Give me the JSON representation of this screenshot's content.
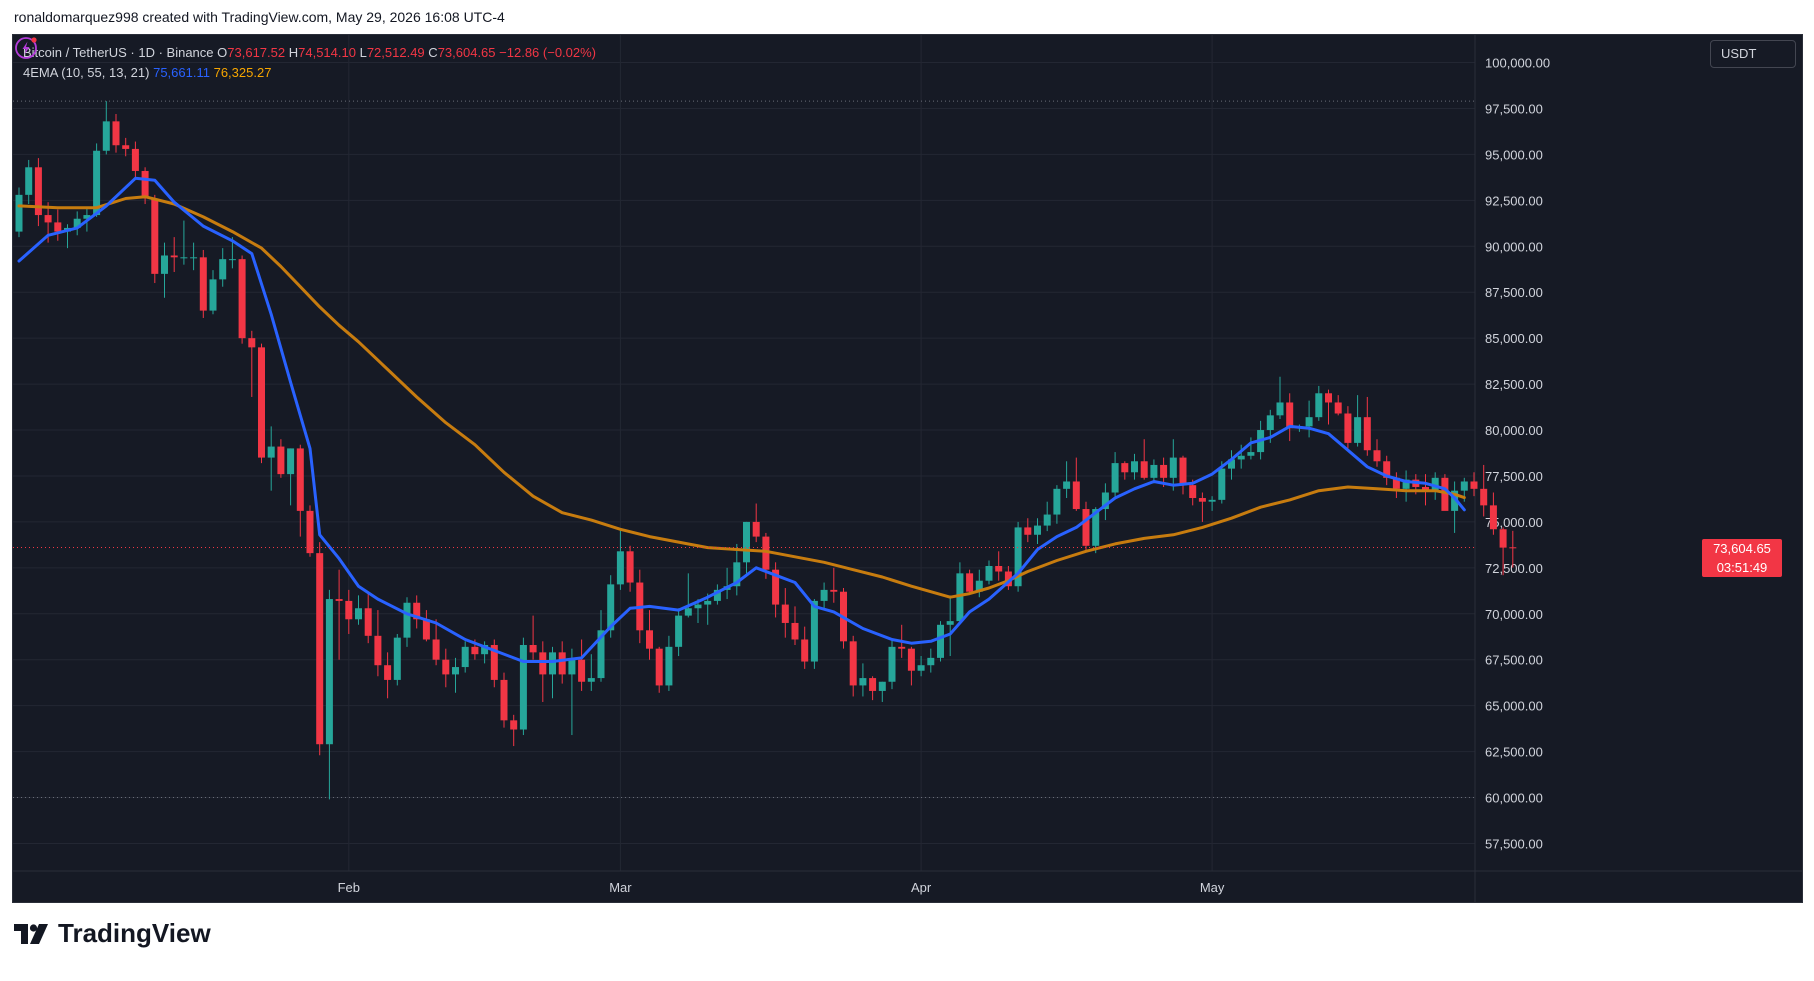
{
  "caption": "ronaldomarquez998 created with TradingView.com, May 29, 2026 16:08 UTC-4",
  "brand": {
    "name": "TradingView",
    "icon": "tradingview-logo-icon"
  },
  "currency": "USDT",
  "legend": {
    "symbol": "Bitcoin / TetherUS · 1D · Binance",
    "open_label": "O",
    "open": "73,617.52",
    "high_label": "H",
    "high": "74,514.10",
    "low_label": "L",
    "low": "72,512.49",
    "close_label": "C",
    "close": "73,604.65",
    "change": "−12.86 (−0.02%)",
    "indicator": "4EMA (10, 55, 13, 21)",
    "ema_fast": "75,661.11",
    "ema_slow": "76,325.27"
  },
  "last_price": {
    "price": "73,604.65",
    "countdown": "03:51:49",
    "value": 73604.65
  },
  "colors": {
    "up": "#26a69a",
    "down": "#f23645",
    "ema_fast": "#2962ff",
    "ema_slow": "#c77c0f",
    "background": "#161a25",
    "grid": "#232733",
    "axis_text": "#d1d4dc"
  },
  "chart_data": {
    "type": "candlestick",
    "title": "Bitcoin / TetherUS · 1D · Binance",
    "ylim": [
      56000,
      101500
    ],
    "y_ticks": [
      57500,
      60000,
      62500,
      65000,
      67500,
      70000,
      72500,
      75000,
      77500,
      80000,
      82500,
      85000,
      87500,
      90000,
      92500,
      95000,
      97500,
      100000
    ],
    "y_tick_labels": [
      "57,500.00",
      "60,000.00",
      "62,500.00",
      "65,000.00",
      "67,500.00",
      "70,000.00",
      "72,500.00",
      "75,000.00",
      "77,500.00",
      "80,000.00",
      "82,500.00",
      "85,000.00",
      "87,500.00",
      "90,000.00",
      "92,500.00",
      "95,000.00",
      "97,500.00",
      "100,000.00"
    ],
    "x_labels": [
      {
        "label": "Feb",
        "index": 34
      },
      {
        "label": "Mar",
        "index": 62
      },
      {
        "label": "Apr",
        "index": 93
      },
      {
        "label": "May",
        "index": 123
      }
    ],
    "dotted_levels": [
      97900,
      60000
    ],
    "candles": [
      [
        90800,
        93200,
        90500,
        92800
      ],
      [
        92800,
        94700,
        92300,
        94300
      ],
      [
        94300,
        94800,
        91100,
        91700
      ],
      [
        91700,
        92400,
        90200,
        91300
      ],
      [
        91300,
        92000,
        90300,
        90800
      ],
      [
        90800,
        91200,
        89900,
        91000
      ],
      [
        91000,
        91900,
        90600,
        91500
      ],
      [
        91500,
        92100,
        90800,
        91700
      ],
      [
        91700,
        95600,
        91600,
        95200
      ],
      [
        95200,
        97900,
        95000,
        96800
      ],
      [
        96800,
        97200,
        95100,
        95500
      ],
      [
        95500,
        95900,
        94900,
        95300
      ],
      [
        95300,
        95700,
        93700,
        94100
      ],
      [
        94100,
        94300,
        92300,
        92600
      ],
      [
        92600,
        92800,
        88000,
        88500
      ],
      [
        88500,
        90200,
        87200,
        89500
      ],
      [
        89500,
        90500,
        88600,
        89400
      ],
      [
        89400,
        91400,
        89000,
        89400
      ],
      [
        89400,
        90200,
        88700,
        89400
      ],
      [
        89400,
        89800,
        86100,
        86500
      ],
      [
        86500,
        88700,
        86300,
        88200
      ],
      [
        88200,
        89900,
        87800,
        89300
      ],
      [
        89300,
        90500,
        88800,
        89300
      ],
      [
        89300,
        89500,
        84700,
        85000
      ],
      [
        85000,
        85400,
        81800,
        84500
      ],
      [
        84500,
        84700,
        78200,
        78500
      ],
      [
        78500,
        80200,
        76700,
        79100
      ],
      [
        79100,
        79500,
        77400,
        77600
      ],
      [
        77600,
        79000,
        75900,
        79000
      ],
      [
        79000,
        79200,
        74200,
        75600
      ],
      [
        75600,
        75900,
        73100,
        73300
      ],
      [
        73300,
        73900,
        62300,
        62900
      ],
      [
        62900,
        71300,
        59900,
        70800
      ],
      [
        70800,
        72400,
        67500,
        70700
      ],
      [
        70700,
        71300,
        68900,
        69700
      ],
      [
        69700,
        71000,
        69400,
        70300
      ],
      [
        70300,
        71100,
        68400,
        68800
      ],
      [
        68800,
        70200,
        66600,
        67200
      ],
      [
        67200,
        67900,
        65400,
        66400
      ],
      [
        66400,
        68900,
        66100,
        68700
      ],
      [
        68700,
        70900,
        68200,
        70600
      ],
      [
        70600,
        71000,
        69200,
        69700
      ],
      [
        69700,
        70200,
        68500,
        68600
      ],
      [
        68600,
        69700,
        67200,
        67500
      ],
      [
        67500,
        68100,
        66000,
        66700
      ],
      [
        66700,
        67600,
        65700,
        67100
      ],
      [
        67100,
        68500,
        66800,
        68200
      ],
      [
        68200,
        68600,
        67500,
        67800
      ],
      [
        67800,
        68500,
        67300,
        68300
      ],
      [
        68300,
        68600,
        66000,
        66400
      ],
      [
        66400,
        66800,
        63800,
        64200
      ],
      [
        64200,
        64500,
        62800,
        63700
      ],
      [
        63700,
        68700,
        63400,
        68300
      ],
      [
        68300,
        69900,
        67500,
        67900
      ],
      [
        67900,
        68500,
        65200,
        66700
      ],
      [
        66700,
        68200,
        65400,
        67900
      ],
      [
        67900,
        68500,
        66200,
        66700
      ],
      [
        66700,
        68100,
        63400,
        67500
      ],
      [
        67500,
        68600,
        65800,
        66300
      ],
      [
        66300,
        67800,
        65800,
        66500
      ],
      [
        66500,
        70200,
        66300,
        69100
      ],
      [
        69100,
        72100,
        68700,
        71600
      ],
      [
        71600,
        74600,
        71300,
        73400
      ],
      [
        73400,
        73700,
        71200,
        71700
      ],
      [
        71700,
        72400,
        68400,
        69100
      ],
      [
        69100,
        70200,
        67500,
        68100
      ],
      [
        68100,
        68200,
        65700,
        66100
      ],
      [
        66100,
        68800,
        65800,
        68200
      ],
      [
        68200,
        70300,
        67700,
        69900
      ],
      [
        69900,
        72200,
        69800,
        70300
      ],
      [
        70300,
        70800,
        69500,
        70500
      ],
      [
        70500,
        71100,
        69400,
        70700
      ],
      [
        70700,
        71600,
        70500,
        71300
      ],
      [
        71300,
        72500,
        70800,
        71500
      ],
      [
        71500,
        73800,
        71000,
        72800
      ],
      [
        72800,
        75000,
        72200,
        75000
      ],
      [
        75000,
        76000,
        73900,
        74200
      ],
      [
        74200,
        74400,
        71900,
        72400
      ],
      [
        72400,
        72800,
        69800,
        70500
      ],
      [
        70500,
        71400,
        68700,
        69500
      ],
      [
        69500,
        70400,
        68300,
        68600
      ],
      [
        68600,
        69300,
        67000,
        67400
      ],
      [
        67400,
        70800,
        67000,
        70700
      ],
      [
        70700,
        71700,
        70300,
        71300
      ],
      [
        71300,
        72500,
        70600,
        71200
      ],
      [
        71200,
        71400,
        68100,
        68500
      ],
      [
        68500,
        68800,
        65500,
        66100
      ],
      [
        66100,
        67300,
        65500,
        66500
      ],
      [
        66500,
        66600,
        65300,
        65800
      ],
      [
        65800,
        66300,
        65200,
        66300
      ],
      [
        66300,
        68600,
        65900,
        68200
      ],
      [
        68200,
        69400,
        67600,
        68100
      ],
      [
        68100,
        68200,
        66100,
        66900
      ],
      [
        66900,
        67700,
        66600,
        67200
      ],
      [
        67200,
        68100,
        66800,
        67600
      ],
      [
        67600,
        69600,
        67400,
        69400
      ],
      [
        69400,
        71000,
        67700,
        69600
      ],
      [
        69600,
        72800,
        69500,
        72200
      ],
      [
        72200,
        72400,
        71100,
        71200
      ],
      [
        71200,
        72400,
        70900,
        71800
      ],
      [
        71800,
        72900,
        71600,
        72600
      ],
      [
        72600,
        73400,
        71800,
        72300
      ],
      [
        72300,
        72600,
        71300,
        71500
      ],
      [
        71500,
        75000,
        71200,
        74700
      ],
      [
        74700,
        75200,
        73900,
        74300
      ],
      [
        74300,
        75200,
        73800,
        74800
      ],
      [
        74800,
        76100,
        74500,
        75400
      ],
      [
        75400,
        77000,
        74900,
        76800
      ],
      [
        76800,
        78300,
        76300,
        77200
      ],
      [
        77200,
        78500,
        75600,
        75700
      ],
      [
        75700,
        76100,
        73400,
        73700
      ],
      [
        73700,
        75800,
        73300,
        75700
      ],
      [
        75700,
        77100,
        75100,
        76600
      ],
      [
        76600,
        78800,
        76300,
        78200
      ],
      [
        78200,
        78300,
        77300,
        77700
      ],
      [
        77700,
        78700,
        77300,
        78300
      ],
      [
        78300,
        79500,
        77300,
        77400
      ],
      [
        77400,
        78400,
        77100,
        78100
      ],
      [
        78100,
        78500,
        76900,
        77400
      ],
      [
        77400,
        79500,
        76700,
        78500
      ],
      [
        78500,
        78600,
        76500,
        77000
      ],
      [
        77000,
        77300,
        75900,
        76300
      ],
      [
        76300,
        76600,
        75000,
        76100
      ],
      [
        76100,
        76400,
        75600,
        76200
      ],
      [
        76200,
        78300,
        76000,
        77900
      ],
      [
        77900,
        78900,
        77300,
        78400
      ],
      [
        78400,
        79200,
        77900,
        78600
      ],
      [
        78600,
        79600,
        78400,
        78800
      ],
      [
        78800,
        80500,
        78400,
        80000
      ],
      [
        80000,
        81100,
        79300,
        80800
      ],
      [
        80800,
        82900,
        80600,
        81500
      ],
      [
        81500,
        82000,
        79400,
        80100
      ],
      [
        80100,
        80300,
        79900,
        80200
      ],
      [
        80200,
        81600,
        79600,
        80700
      ],
      [
        80700,
        82400,
        80500,
        82000
      ],
      [
        82000,
        82200,
        80300,
        81500
      ],
      [
        81500,
        81900,
        80800,
        80900
      ],
      [
        80900,
        81300,
        79000,
        79300
      ],
      [
        79300,
        81900,
        79100,
        80700
      ],
      [
        80700,
        81800,
        78600,
        78900
      ],
      [
        78900,
        79500,
        78000,
        78300
      ],
      [
        78300,
        78600,
        77000,
        77400
      ],
      [
        77400,
        77700,
        76300,
        76800
      ],
      [
        76800,
        77800,
        76100,
        77300
      ],
      [
        77300,
        77600,
        76500,
        76900
      ],
      [
        76900,
        77600,
        75900,
        76700
      ],
      [
        76700,
        77700,
        76200,
        77400
      ],
      [
        77400,
        77600,
        75800,
        75600
      ],
      [
        75600,
        77200,
        74400,
        76700
      ],
      [
        76700,
        77400,
        76100,
        77200
      ],
      [
        77200,
        77700,
        76400,
        76800
      ],
      [
        76800,
        78100,
        75300,
        75900
      ],
      [
        75900,
        76600,
        74300,
        74600
      ],
      [
        74600,
        74700,
        72100,
        73600
      ],
      [
        73617.52,
        74514.1,
        72512.49,
        73604.65
      ]
    ],
    "ema_fast_name": "4EMA (10, 55, 13, 21)",
    "ema_fast": [
      [
        0,
        89200
      ],
      [
        3,
        90600
      ],
      [
        6,
        91000
      ],
      [
        9,
        92200
      ],
      [
        12,
        93700
      ],
      [
        14,
        93600
      ],
      [
        16,
        92400
      ],
      [
        19,
        91100
      ],
      [
        22,
        90300
      ],
      [
        24,
        89600
      ],
      [
        26,
        86300
      ],
      [
        28,
        82600
      ],
      [
        30,
        79000
      ],
      [
        31,
        74300
      ],
      [
        33,
        73000
      ],
      [
        35,
        71500
      ],
      [
        37,
        70800
      ],
      [
        40,
        70000
      ],
      [
        43,
        69500
      ],
      [
        46,
        68600
      ],
      [
        49,
        68000
      ],
      [
        52,
        67400
      ],
      [
        55,
        67400
      ],
      [
        58,
        67600
      ],
      [
        61,
        69300
      ],
      [
        63,
        70300
      ],
      [
        65,
        70400
      ],
      [
        68,
        70200
      ],
      [
        71,
        70900
      ],
      [
        74,
        71700
      ],
      [
        76,
        72500
      ],
      [
        78,
        72100
      ],
      [
        80,
        71700
      ],
      [
        82,
        70400
      ],
      [
        84,
        70100
      ],
      [
        87,
        69200
      ],
      [
        90,
        68600
      ],
      [
        92,
        68400
      ],
      [
        94,
        68500
      ],
      [
        96,
        68900
      ],
      [
        98,
        70100
      ],
      [
        100,
        70800
      ],
      [
        103,
        72200
      ],
      [
        105,
        73500
      ],
      [
        107,
        74200
      ],
      [
        109,
        74700
      ],
      [
        111,
        75500
      ],
      [
        113,
        76300
      ],
      [
        115,
        76800
      ],
      [
        117,
        77200
      ],
      [
        119,
        77000
      ],
      [
        121,
        77100
      ],
      [
        123,
        77600
      ],
      [
        125,
        78400
      ],
      [
        127,
        79300
      ],
      [
        129,
        79600
      ],
      [
        131,
        80200
      ],
      [
        133,
        80100
      ],
      [
        135,
        79800
      ],
      [
        137,
        78900
      ],
      [
        139,
        78000
      ],
      [
        141,
        77500
      ],
      [
        143,
        77200
      ],
      [
        145,
        77100
      ],
      [
        147,
        76800
      ],
      [
        148,
        76300
      ],
      [
        149,
        75661
      ]
    ],
    "ema_slow_name": "4EMA (10, 55, 13, 21)",
    "ema_slow": [
      [
        0,
        92200
      ],
      [
        4,
        92100
      ],
      [
        8,
        92100
      ],
      [
        11,
        92600
      ],
      [
        13,
        92700
      ],
      [
        16,
        92300
      ],
      [
        19,
        91600
      ],
      [
        22,
        90800
      ],
      [
        25,
        89900
      ],
      [
        27,
        88900
      ],
      [
        29,
        87800
      ],
      [
        31,
        86700
      ],
      [
        33,
        85700
      ],
      [
        35,
        84800
      ],
      [
        38,
        83300
      ],
      [
        41,
        81800
      ],
      [
        44,
        80400
      ],
      [
        47,
        79200
      ],
      [
        50,
        77700
      ],
      [
        53,
        76400
      ],
      [
        56,
        75500
      ],
      [
        59,
        75100
      ],
      [
        62,
        74600
      ],
      [
        65,
        74200
      ],
      [
        68,
        73900
      ],
      [
        71,
        73600
      ],
      [
        74,
        73500
      ],
      [
        77,
        73400
      ],
      [
        80,
        73100
      ],
      [
        83,
        72800
      ],
      [
        86,
        72400
      ],
      [
        89,
        72000
      ],
      [
        92,
        71500
      ],
      [
        94,
        71200
      ],
      [
        96,
        70900
      ],
      [
        98,
        71100
      ],
      [
        100,
        71400
      ],
      [
        102,
        71800
      ],
      [
        104,
        72300
      ],
      [
        107,
        72900
      ],
      [
        110,
        73400
      ],
      [
        113,
        73800
      ],
      [
        116,
        74100
      ],
      [
        119,
        74300
      ],
      [
        122,
        74700
      ],
      [
        125,
        75200
      ],
      [
        128,
        75800
      ],
      [
        131,
        76200
      ],
      [
        134,
        76700
      ],
      [
        137,
        76900
      ],
      [
        140,
        76800
      ],
      [
        143,
        76700
      ],
      [
        146,
        76700
      ],
      [
        148,
        76500
      ],
      [
        149,
        76325
      ]
    ]
  }
}
